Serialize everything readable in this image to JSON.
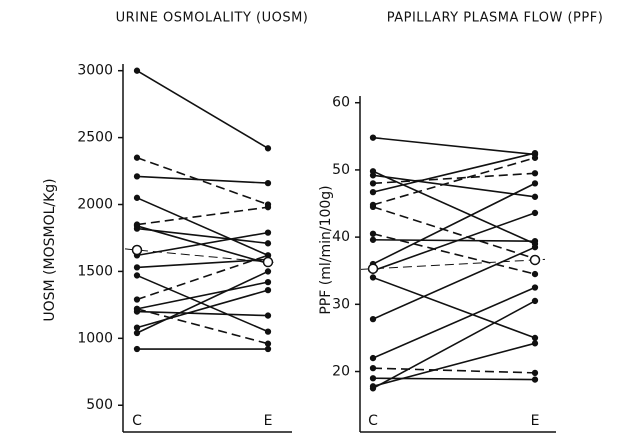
{
  "chart_data": [
    {
      "type": "line",
      "title": "URINE OSMOLALITY (UOSM)",
      "y_label": "UOSM (MOSMOL/Kg)",
      "categories": [
        "C",
        "E"
      ],
      "ylim": [
        300,
        3050
      ],
      "yticks": [
        500,
        1000,
        1500,
        2000,
        2500,
        3000
      ],
      "color": "#111",
      "series": [
        {
          "values": [
            3000,
            2420
          ],
          "dashed": false
        },
        {
          "values": [
            2350,
            2000
          ],
          "dashed": true
        },
        {
          "values": [
            2210,
            2160
          ],
          "dashed": false
        },
        {
          "values": [
            2050,
            1620
          ],
          "dashed": false
        },
        {
          "values": [
            1850,
            1980
          ],
          "dashed": true
        },
        {
          "values": [
            1820,
            1710
          ],
          "dashed": false
        },
        {
          "values": [
            1840,
            1560
          ],
          "dashed": false
        },
        {
          "values": [
            1620,
            1790
          ],
          "dashed": false
        },
        {
          "values": [
            1530,
            1590
          ],
          "dashed": false
        },
        {
          "values": [
            1470,
            1050
          ],
          "dashed": false
        },
        {
          "values": [
            1290,
            1620
          ],
          "dashed": true
        },
        {
          "values": [
            1220,
            1420
          ],
          "dashed": false
        },
        {
          "values": [
            1200,
            1170
          ],
          "dashed": false
        },
        {
          "values": [
            1080,
            1360
          ],
          "dashed": false
        },
        {
          "values": [
            1220,
            960
          ],
          "dashed": true
        },
        {
          "values": [
            1040,
            1500
          ],
          "dashed": false
        },
        {
          "values": [
            920,
            920
          ],
          "dashed": false
        },
        {
          "values": [
            1660,
            1570
          ],
          "dashed": true,
          "mean": true
        }
      ]
    },
    {
      "type": "line",
      "title": "PAPILLARY PLASMA FLOW (PPF)",
      "y_label": "PPF (ml/min/100g)",
      "categories": [
        "C",
        "E"
      ],
      "ylim": [
        11,
        61
      ],
      "yticks": [
        20,
        30,
        40,
        50,
        60
      ],
      "color": "#111",
      "series": [
        {
          "values": [
            54.8,
            52.3
          ],
          "dashed": false
        },
        {
          "values": [
            49.8,
            39.0
          ],
          "dashed": false
        },
        {
          "values": [
            49.2,
            46.0
          ],
          "dashed": false
        },
        {
          "values": [
            46.7,
            52.5
          ],
          "dashed": false
        },
        {
          "values": [
            48.0,
            49.5
          ],
          "dashed": true
        },
        {
          "values": [
            44.8,
            51.8
          ],
          "dashed": true
        },
        {
          "values": [
            44.5,
            36.8
          ],
          "dashed": true
        },
        {
          "values": [
            40.5,
            34.5
          ],
          "dashed": true
        },
        {
          "values": [
            39.6,
            39.4
          ],
          "dashed": false
        },
        {
          "values": [
            36.0,
            48.0
          ],
          "dashed": false
        },
        {
          "values": [
            35.0,
            43.6
          ],
          "dashed": false
        },
        {
          "values": [
            34.0,
            25.0
          ],
          "dashed": false
        },
        {
          "values": [
            27.8,
            38.5
          ],
          "dashed": false
        },
        {
          "values": [
            22.0,
            32.5
          ],
          "dashed": false
        },
        {
          "values": [
            20.5,
            19.8
          ],
          "dashed": true
        },
        {
          "values": [
            19.0,
            18.8
          ],
          "dashed": false
        },
        {
          "values": [
            17.8,
            24.2
          ],
          "dashed": false
        },
        {
          "values": [
            17.5,
            30.5
          ],
          "dashed": false
        },
        {
          "values": [
            35.3,
            36.6
          ],
          "dashed": true,
          "mean": true
        }
      ]
    }
  ]
}
